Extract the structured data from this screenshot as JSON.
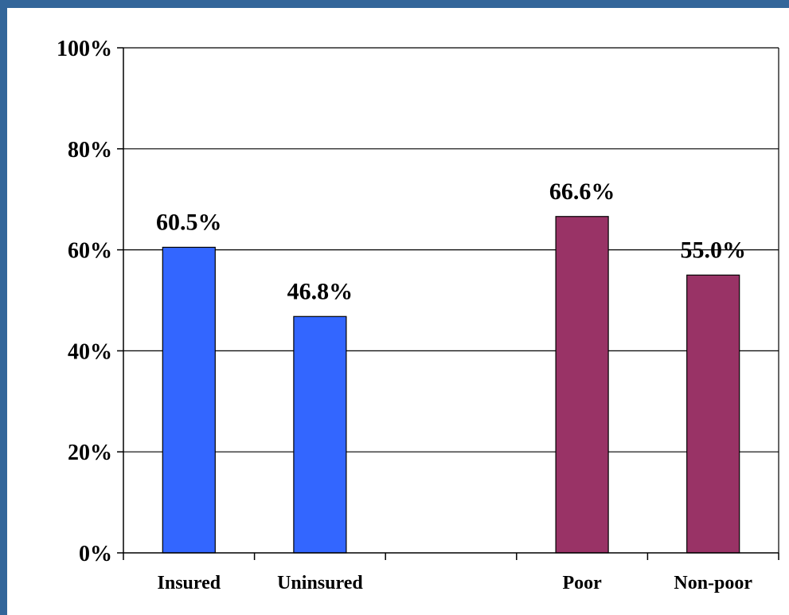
{
  "chart_data": {
    "type": "bar",
    "categories": [
      "Insured",
      "Uninsured",
      "",
      "Poor",
      "Non-poor"
    ],
    "values": [
      60.5,
      46.8,
      null,
      66.6,
      55.0
    ],
    "data_labels": [
      "60.5%",
      "46.8%",
      "",
      "66.6%",
      "55.0%"
    ],
    "bar_colors": [
      "#3366ff",
      "#3366ff",
      "",
      "#993366",
      "#993366"
    ],
    "yticks": [
      "0%",
      "20%",
      "40%",
      "60%",
      "80%",
      "100%"
    ],
    "ytick_values": [
      0,
      20,
      40,
      60,
      80,
      100
    ],
    "ylim": [
      0,
      100
    ],
    "grid": true,
    "title": "",
    "xlabel": "",
    "ylabel": ""
  },
  "colors": {
    "frame": "#33669a",
    "background": "#ffffff"
  }
}
